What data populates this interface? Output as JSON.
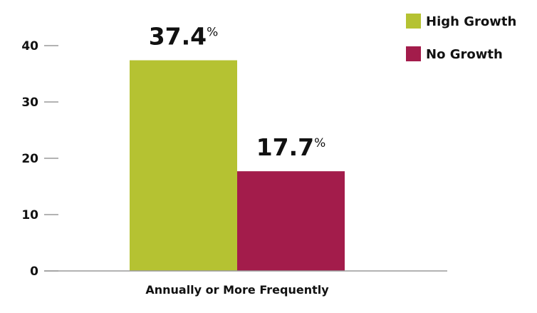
{
  "chart_data": {
    "type": "bar",
    "categories": [
      "Annually or More Frequently"
    ],
    "series": [
      {
        "name": "High Growth",
        "values": [
          37.4
        ],
        "color": "#b5c232",
        "label": "37.4",
        "unit": "%"
      },
      {
        "name": "No Growth",
        "values": [
          17.7
        ],
        "color": "#a31c4b",
        "label": "17.7",
        "unit": "%"
      }
    ],
    "ylim": [
      0,
      40
    ],
    "yticks": [
      "0",
      "10",
      "20",
      "30",
      "40"
    ],
    "title": "",
    "xlabel": "",
    "ylabel": "",
    "legend": "top-right",
    "grid": false
  }
}
